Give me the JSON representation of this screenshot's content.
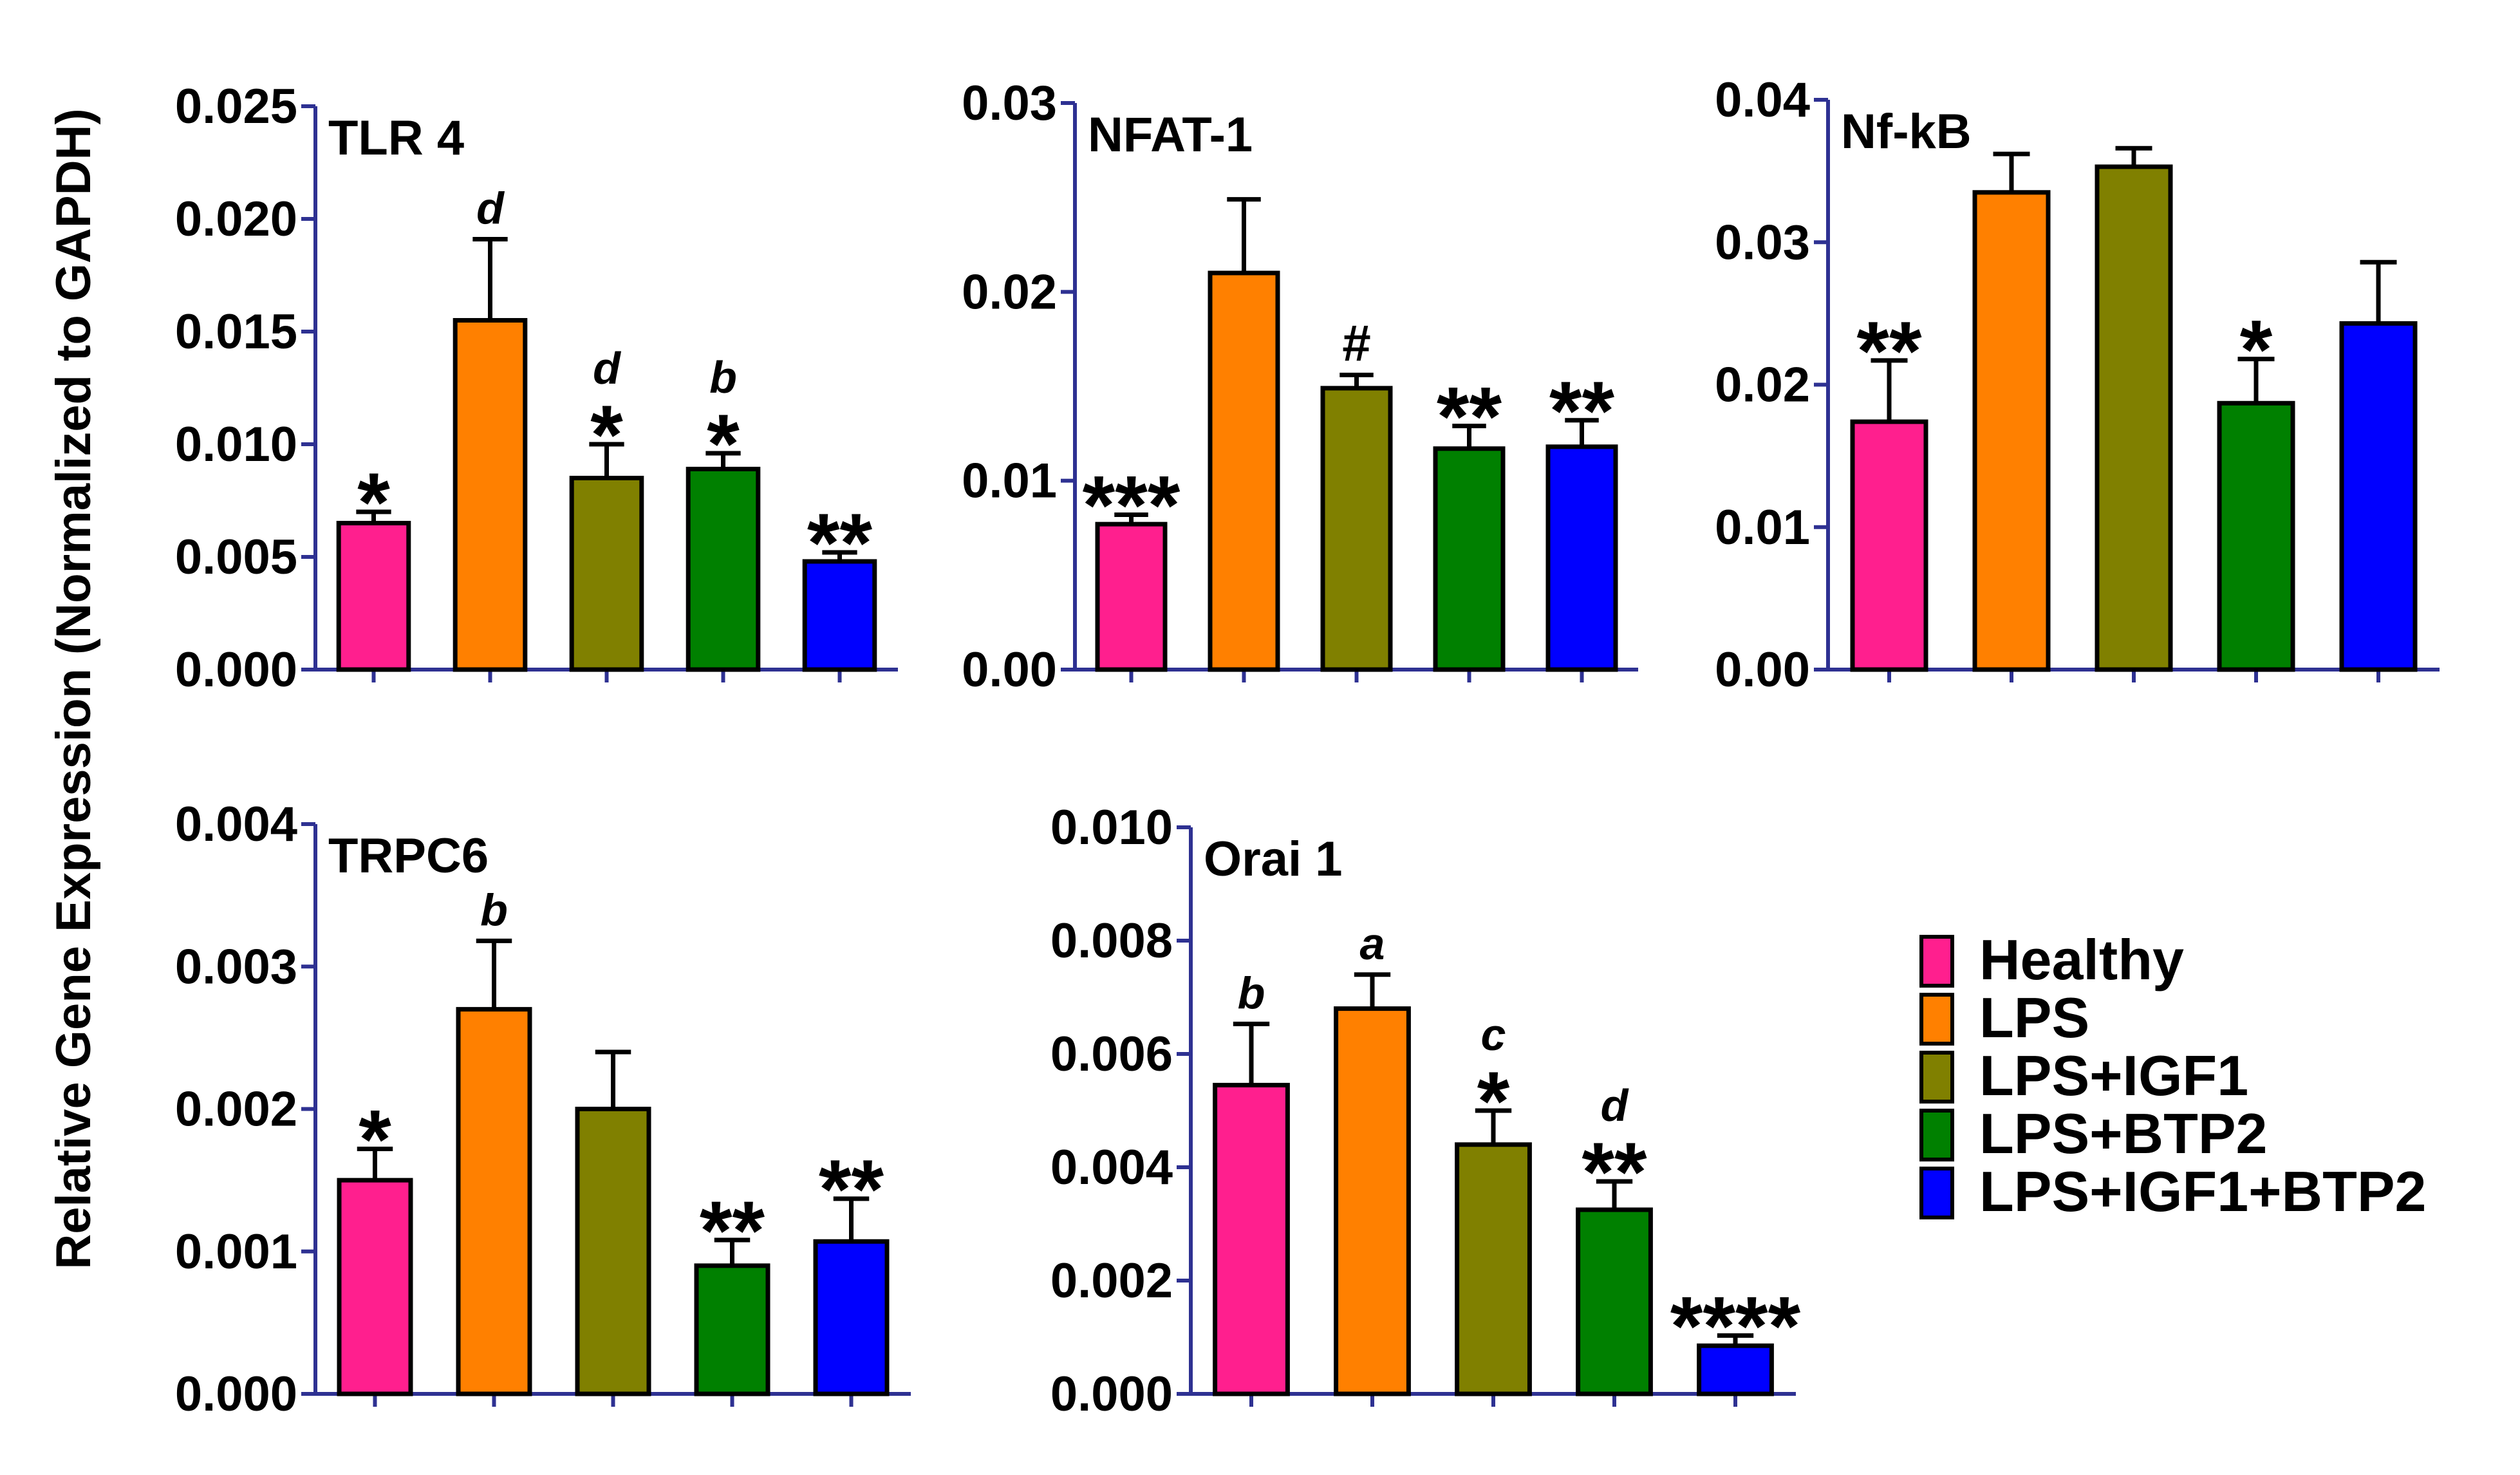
{
  "figure": {
    "ylabel": "Relative Gene Expression (Normalized to GAPDH)"
  },
  "colors": {
    "Healthy": "#ff1f8e",
    "LPS": "#ff8000",
    "LPS+IGF1": "#808000",
    "LPS+BTP2": "#008000",
    "LPS+IGF1+BTP2": "#0000ff",
    "axis": "#2e3192"
  },
  "legend": {
    "items": [
      "Healthy",
      "LPS",
      "LPS+IGF1",
      "LPS+BTP2",
      "LPS+IGF1+BTP2"
    ]
  },
  "chart_data": [
    {
      "type": "bar",
      "title": "TLR 4",
      "categories": [
        "Healthy",
        "LPS",
        "LPS+IGF1",
        "LPS+BTP2",
        "LPS+IGF1+BTP2"
      ],
      "values": [
        0.0065,
        0.0155,
        0.0085,
        0.0089,
        0.0048
      ],
      "errors": [
        0.0005,
        0.0036,
        0.0015,
        0.0007,
        0.0004
      ],
      "annotations": [
        {
          "letter": "",
          "mark": "*"
        },
        {
          "letter": "d",
          "mark": ""
        },
        {
          "letter": "d",
          "mark": "*"
        },
        {
          "letter": "b",
          "mark": "*"
        },
        {
          "letter": "",
          "mark": "**"
        }
      ],
      "ylim": [
        0,
        0.025
      ],
      "ticks": [
        "0.000",
        "0.005",
        "0.010",
        "0.015",
        "0.020",
        "0.025"
      ]
    },
    {
      "type": "bar",
      "title": "NFAT-1",
      "categories": [
        "Healthy",
        "LPS",
        "LPS+IGF1",
        "LPS+BTP2",
        "LPS+IGF1+BTP2"
      ],
      "values": [
        0.0077,
        0.021,
        0.0149,
        0.0117,
        0.0118
      ],
      "errors": [
        0.0005,
        0.0039,
        0.0007,
        0.0012,
        0.0014
      ],
      "annotations": [
        {
          "letter": "",
          "mark": "***"
        },
        {
          "letter": "",
          "mark": ""
        },
        {
          "letter": "",
          "mark": "#"
        },
        {
          "letter": "",
          "mark": "**"
        },
        {
          "letter": "",
          "mark": "**"
        }
      ],
      "ylim": [
        0,
        0.03
      ],
      "ticks": [
        "0.00",
        "0.01",
        "0.02",
        "0.03"
      ]
    },
    {
      "type": "bar",
      "title": "Nf-kB",
      "categories": [
        "Healthy",
        "LPS",
        "LPS+IGF1",
        "LPS+BTP2",
        "LPS+IGF1+BTP2"
      ],
      "values": [
        0.0174,
        0.0335,
        0.0353,
        0.0187,
        0.0243
      ],
      "errors": [
        0.0043,
        0.0027,
        0.0013,
        0.0031,
        0.0043
      ],
      "annotations": [
        {
          "letter": "",
          "mark": "**"
        },
        {
          "letter": "",
          "mark": ""
        },
        {
          "letter": "",
          "mark": ""
        },
        {
          "letter": "",
          "mark": "*"
        },
        {
          "letter": "",
          "mark": ""
        }
      ],
      "ylim": [
        0,
        0.04
      ],
      "ticks": [
        "0.00",
        "0.01",
        "0.02",
        "0.03",
        "0.04"
      ]
    },
    {
      "type": "bar",
      "title": "TRPC6",
      "categories": [
        "Healthy",
        "LPS",
        "LPS+IGF1",
        "LPS+BTP2",
        "LPS+IGF1+BTP2"
      ],
      "values": [
        0.0015,
        0.0027,
        0.002,
        0.0009,
        0.00107
      ],
      "errors": [
        0.00022,
        0.00048,
        0.0004,
        0.00018,
        0.0003
      ],
      "annotations": [
        {
          "letter": "",
          "mark": "*"
        },
        {
          "letter": "b",
          "mark": ""
        },
        {
          "letter": "",
          "mark": ""
        },
        {
          "letter": "",
          "mark": "**"
        },
        {
          "letter": "",
          "mark": "**"
        }
      ],
      "ylim": [
        0,
        0.004
      ],
      "ticks": [
        "0.000",
        "0.001",
        "0.002",
        "0.003",
        "0.004"
      ]
    },
    {
      "type": "bar",
      "title": "Orai 1",
      "categories": [
        "Healthy",
        "LPS",
        "LPS+IGF1",
        "LPS+BTP2",
        "LPS+IGF1+BTP2"
      ],
      "values": [
        0.00545,
        0.0068,
        0.0044,
        0.00325,
        0.00085
      ],
      "errors": [
        0.00108,
        0.0006,
        0.0006,
        0.0005,
        0.00018
      ],
      "annotations": [
        {
          "letter": "b",
          "mark": ""
        },
        {
          "letter": "a",
          "mark": ""
        },
        {
          "letter": "c",
          "mark": "*"
        },
        {
          "letter": "d",
          "mark": "**"
        },
        {
          "letter": "",
          "mark": "****"
        }
      ],
      "ylim": [
        0,
        0.01
      ],
      "ticks": [
        "0.000",
        "0.002",
        "0.004",
        "0.006",
        "0.008",
        "0.010"
      ]
    }
  ]
}
